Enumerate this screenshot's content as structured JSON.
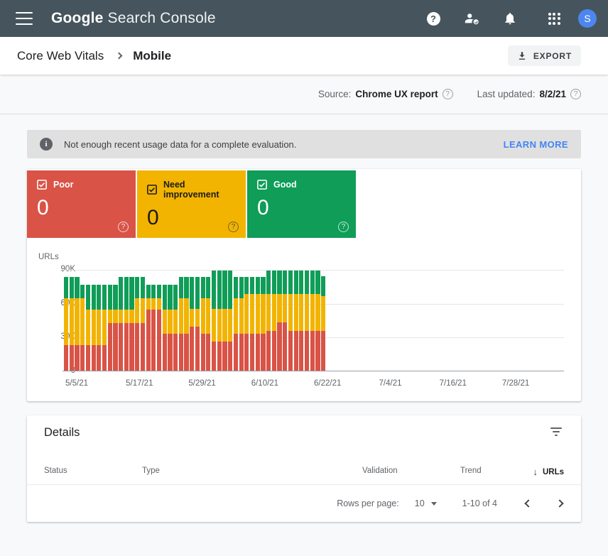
{
  "header": {
    "app_title_primary": "Google",
    "app_title_secondary": "Search Console",
    "avatar_initial": "S"
  },
  "breadcrumb": {
    "section": "Core Web Vitals",
    "page": "Mobile",
    "export_label": "EXPORT"
  },
  "source_bar": {
    "source_label": "Source:",
    "source_value": "Chrome UX report",
    "updated_label": "Last updated:",
    "updated_value": "8/2/21"
  },
  "banner": {
    "message": "Not enough recent usage data for a complete evaluation.",
    "action": "LEARN MORE"
  },
  "status_cards": [
    {
      "label": "Poor",
      "value": "0",
      "color": "#d95347"
    },
    {
      "label": "Need improvement",
      "value": "0",
      "color": "#f2b400"
    },
    {
      "label": "Good",
      "value": "0",
      "color": "#0f9d58"
    }
  ],
  "chart_data": {
    "type": "bar",
    "stacked": true,
    "title": "",
    "ylabel": "URLs",
    "ylim": [
      0,
      90000
    ],
    "values_unit": "thousands of URLs",
    "yticks": [
      "0",
      "30K",
      "60K",
      "90K"
    ],
    "xticks": [
      "5/5/21",
      "5/17/21",
      "5/29/21",
      "6/10/21",
      "6/22/21",
      "7/4/21",
      "7/16/21",
      "7/28/21"
    ],
    "grid": true,
    "data_ends_before": "6/22/21",
    "series": [
      {
        "name": "Poor",
        "color": "#d95347",
        "values": [
          23,
          23,
          23,
          23,
          23,
          23,
          23,
          23,
          42,
          42,
          42,
          42,
          42,
          42,
          42,
          54,
          54,
          54,
          33,
          33,
          33,
          33,
          33,
          39,
          39,
          33,
          33,
          26,
          26,
          26,
          26,
          33,
          33,
          33,
          33,
          33,
          33,
          35,
          35,
          43,
          43,
          35,
          35,
          35,
          35,
          35,
          35,
          35
        ]
      },
      {
        "name": "Need improvement",
        "color": "#f2b400",
        "values": [
          41,
          41,
          41,
          41,
          31,
          31,
          31,
          31,
          12,
          12,
          12,
          12,
          12,
          22,
          22,
          10,
          10,
          10,
          21,
          21,
          21,
          31,
          31,
          16,
          16,
          31,
          31,
          29,
          29,
          29,
          29,
          31,
          31,
          35,
          35,
          35,
          35,
          33,
          33,
          25,
          25,
          33,
          33,
          33,
          33,
          33,
          33,
          31
        ]
      },
      {
        "name": "Good",
        "color": "#0f9d58",
        "values": [
          19,
          19,
          19,
          12,
          22,
          22,
          22,
          22,
          22,
          22,
          29,
          29,
          29,
          19,
          19,
          12,
          12,
          12,
          22,
          22,
          22,
          19,
          19,
          28,
          28,
          19,
          19,
          34,
          34,
          34,
          34,
          19,
          19,
          15,
          15,
          15,
          15,
          21,
          21,
          21,
          21,
          21,
          21,
          21,
          21,
          21,
          21,
          18
        ]
      }
    ]
  },
  "details": {
    "title": "Details",
    "columns": [
      "Status",
      "Type",
      "Validation",
      "Trend",
      "URLs"
    ],
    "sort_column": "URLs",
    "pagination": {
      "rows_per_page_label": "Rows per page:",
      "rows_per_page": "10",
      "range": "1-10 of 4"
    }
  },
  "icons": {
    "help_glyph": "?",
    "info_glyph": "i",
    "sort_arrow": "↓"
  }
}
